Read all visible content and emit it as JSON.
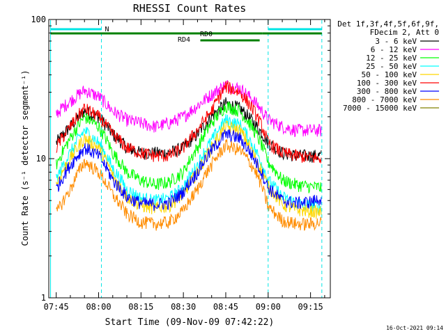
{
  "chart_data": {
    "type": "line",
    "title": "RHESSI Count Rates",
    "xlabel": "Start Time (09-Nov-09 07:42:22)",
    "ylabel": "Count Rate (s⁻¹ detector segment⁻¹)",
    "y_scale": "log",
    "ylim": [
      1,
      100
    ],
    "y_ticks": [
      {
        "value": 1,
        "label": "1"
      },
      {
        "value": 10,
        "label": "10"
      },
      {
        "value": 100,
        "label": "100"
      }
    ],
    "xlim": [
      "07:42:22",
      "09:22:00"
    ],
    "x_ticks": [
      "07:45",
      "08:00",
      "08:15",
      "08:30",
      "08:45",
      "09:00",
      "09:15"
    ],
    "grid": false,
    "legend_position": "right",
    "legend_header": [
      "Det 1f,3f,4f,5f,6f,9f,",
      "FDecim 2, Att 0"
    ],
    "footer_date": "16-Oct-2021 09:14",
    "x": [
      "07:45",
      "07:50",
      "07:55",
      "08:00",
      "08:05",
      "08:10",
      "08:15",
      "08:20",
      "08:25",
      "08:30",
      "08:35",
      "08:40",
      "08:45",
      "08:50",
      "08:55",
      "09:00",
      "09:05",
      "09:10",
      "09:15",
      "09:19"
    ],
    "series": [
      {
        "name": "3 - 6 keV",
        "color": "#000000",
        "values": [
          13,
          17,
          22,
          20,
          15,
          12,
          11,
          11,
          11,
          12,
          15,
          20,
          25,
          23,
          18,
          13,
          11,
          10.5,
          10.5,
          10.5
        ]
      },
      {
        "name": "6 - 12 keV",
        "color": "#ff00ff",
        "values": [
          21,
          26,
          31,
          28,
          22,
          19,
          18,
          17,
          18,
          20,
          24,
          29,
          34,
          32,
          26,
          19,
          17,
          16,
          16,
          16
        ]
      },
      {
        "name": "12 - 25 keV",
        "color": "#00ff00",
        "values": [
          9,
          14,
          20,
          17,
          11,
          8,
          7,
          6.5,
          6.8,
          8,
          12,
          18,
          24,
          22,
          16,
          9.5,
          7,
          6.5,
          6.3,
          6.2
        ]
      },
      {
        "name": "25 - 50 keV",
        "color": "#00ffff",
        "values": [
          7,
          11,
          16,
          13,
          8.5,
          6,
          5.2,
          5,
          5.2,
          6.2,
          9,
          13.5,
          19,
          17.5,
          12,
          7,
          5.3,
          4.8,
          4.6,
          4.5
        ]
      },
      {
        "name": "50 - 100 keV",
        "color": "#ffd700",
        "values": [
          6.5,
          10,
          14,
          12,
          7.5,
          5.3,
          4.6,
          4.4,
          4.6,
          5.5,
          8,
          12,
          17,
          16,
          10.5,
          6.3,
          4.7,
          4.3,
          4.2,
          4.1
        ]
      },
      {
        "name": "100 - 300 keV",
        "color": "#ff0000",
        "values": [
          12,
          17,
          23,
          20,
          15,
          12,
          11,
          10.5,
          10.5,
          12,
          16,
          22,
          33,
          30,
          22,
          13,
          11,
          10.5,
          10.2,
          10
        ]
      },
      {
        "name": "300 - 800 keV",
        "color": "#0000ff",
        "values": [
          6,
          9,
          12,
          10.5,
          7,
          5.3,
          4.8,
          4.7,
          4.8,
          5.8,
          8,
          11.5,
          15,
          14,
          10,
          6.2,
          5,
          4.8,
          4.9,
          5.2
        ]
      },
      {
        "name": "800 - 7000 keV",
        "color": "#ff8c00",
        "values": [
          4,
          6,
          9.5,
          8,
          5.5,
          4,
          3.5,
          3.4,
          3.5,
          4.2,
          6,
          9,
          12.5,
          11.5,
          8.5,
          4.5,
          3.6,
          3.4,
          3.4,
          3.5
        ]
      },
      {
        "name": "7000 - 15000 keV",
        "color": "#808000",
        "values": [
          null,
          null,
          null,
          null,
          null,
          null,
          null,
          null,
          null,
          null,
          null,
          null,
          null,
          null,
          null,
          null,
          null,
          null,
          null,
          null
        ]
      }
    ],
    "flags": {
      "saa": {
        "label": "",
        "color": "#00e5e5",
        "intervals": [
          [
            "07:43",
            "08:01"
          ],
          [
            "09:00",
            "09:19"
          ]
        ]
      },
      "n": {
        "label": "N",
        "color": "#00e5e5"
      },
      "rd0": {
        "label": "RD0",
        "color": "#008000",
        "intervals": [
          [
            "07:43",
            "08:58"
          ],
          [
            "08:58",
            "09:19"
          ]
        ]
      },
      "rd4": {
        "label": "RD4",
        "color": "#008000",
        "intervals": [
          [
            "08:36",
            "08:57"
          ]
        ]
      }
    }
  }
}
